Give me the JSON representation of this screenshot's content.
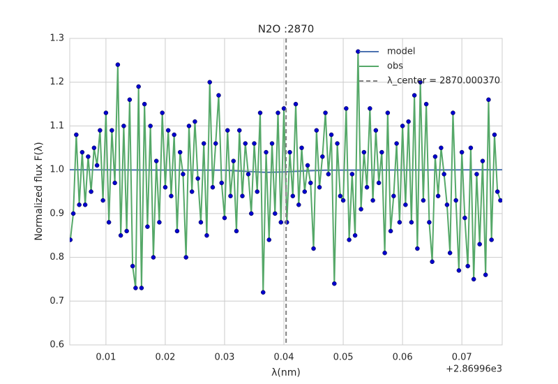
{
  "chart_data": {
    "type": "line",
    "title": "N2O :2870",
    "xlabel": "λ(nm)",
    "ylabel": "Normalized flux F(λ)",
    "x_offset_label": "+2.86996e3",
    "xlim": [
      0.0039,
      0.0768
    ],
    "ylim": [
      0.6,
      1.3
    ],
    "xticks": [
      0.01,
      0.02,
      0.03,
      0.04,
      0.05,
      0.06,
      0.07
    ],
    "yticks": [
      0.6,
      0.7,
      0.8,
      0.9,
      {
        "value": 1,
        "label": "1.0"
      },
      1.1,
      1.2,
      1.3
    ],
    "grid": true,
    "legend": "upper right",
    "series": [
      {
        "name": "model",
        "color": "#4c72b0",
        "x": [
          0.0039,
          0.03,
          0.034,
          0.037,
          0.04,
          0.043,
          0.047,
          0.0768
        ],
        "values": [
          1.0,
          0.999,
          0.996,
          0.994,
          0.995,
          0.997,
          0.999,
          1.0
        ]
      },
      {
        "name": "obs",
        "color": "#55a868",
        "marker_color": "#0000cc",
        "x": [
          0.004,
          0.0045,
          0.005,
          0.0055,
          0.006,
          0.0065,
          0.007,
          0.0075,
          0.008,
          0.0085,
          0.009,
          0.0095,
          0.01,
          0.0105,
          0.011,
          0.0115,
          0.012,
          0.0125,
          0.013,
          0.0135,
          0.014,
          0.0145,
          0.015,
          0.0155,
          0.016,
          0.0165,
          0.017,
          0.0175,
          0.018,
          0.0185,
          0.019,
          0.0195,
          0.02,
          0.0205,
          0.021,
          0.0215,
          0.022,
          0.0225,
          0.023,
          0.0235,
          0.024,
          0.0245,
          0.025,
          0.0255,
          0.026,
          0.0265,
          0.027,
          0.0275,
          0.028,
          0.0285,
          0.029,
          0.0295,
          0.03,
          0.0305,
          0.031,
          0.0315,
          0.032,
          0.0325,
          0.033,
          0.0335,
          0.034,
          0.0345,
          0.035,
          0.0355,
          0.036,
          0.0365,
          0.037,
          0.0375,
          0.038,
          0.0385,
          0.039,
          0.0395,
          0.04,
          0.0405,
          0.041,
          0.0415,
          0.042,
          0.0425,
          0.043,
          0.0435,
          0.044,
          0.0445,
          0.045,
          0.0455,
          0.046,
          0.0465,
          0.047,
          0.0475,
          0.048,
          0.0485,
          0.049,
          0.0495,
          0.05,
          0.0505,
          0.051,
          0.0515,
          0.052,
          0.0525,
          0.053,
          0.0535,
          0.054,
          0.0545,
          0.055,
          0.0555,
          0.056,
          0.0565,
          0.057,
          0.0575,
          0.058,
          0.0585,
          0.059,
          0.0595,
          0.06,
          0.0605,
          0.061,
          0.0615,
          0.062,
          0.0625,
          0.063,
          0.0635,
          0.064,
          0.0645,
          0.065,
          0.0655,
          0.066,
          0.0665,
          0.067,
          0.0675,
          0.068,
          0.0685,
          0.069,
          0.0695,
          0.07,
          0.0705,
          0.071,
          0.0715,
          0.072,
          0.0725,
          0.073,
          0.0735,
          0.074,
          0.0745,
          0.075,
          0.0755,
          0.076,
          0.0765
        ],
        "values": [
          0.84,
          0.9,
          1.08,
          0.92,
          1.04,
          0.92,
          1.03,
          0.95,
          1.05,
          1.01,
          1.09,
          0.93,
          1.13,
          0.88,
          1.09,
          0.97,
          1.24,
          0.85,
          1.1,
          0.86,
          1.16,
          0.78,
          0.73,
          1.19,
          0.73,
          1.15,
          0.87,
          1.1,
          0.8,
          1.02,
          0.88,
          1.13,
          0.96,
          1.09,
          0.94,
          1.08,
          0.86,
          1.04,
          0.99,
          0.8,
          1.1,
          0.95,
          1.11,
          0.98,
          0.88,
          1.06,
          0.85,
          1.2,
          0.96,
          1.06,
          1.17,
          0.97,
          0.89,
          1.09,
          0.94,
          1.02,
          0.86,
          1.09,
          0.94,
          1.06,
          0.99,
          0.9,
          1.06,
          0.95,
          1.13,
          0.72,
          1.04,
          0.84,
          1.06,
          0.9,
          1.13,
          0.88,
          1.14,
          0.88,
          1.04,
          0.94,
          1.15,
          0.92,
          1.05,
          0.95,
          1.01,
          0.97,
          0.82,
          1.09,
          0.96,
          1.03,
          1.13,
          0.99,
          1.08,
          0.74,
          1.06,
          0.94,
          0.93,
          1.14,
          0.84,
          0.99,
          0.85,
          1.27,
          0.91,
          1.04,
          0.96,
          1.14,
          0.93,
          1.09,
          0.97,
          1.04,
          0.81,
          1.13,
          0.86,
          0.94,
          1.06,
          0.88,
          1.1,
          0.92,
          1.11,
          0.88,
          1.17,
          0.82,
          1.2,
          0.93,
          1.15,
          0.88,
          0.79,
          1.03,
          0.94,
          1.05,
          0.99,
          0.92,
          0.81,
          1.13,
          0.93,
          0.77,
          1.04,
          0.89,
          0.78,
          1.05,
          0.75,
          0.99,
          0.83,
          1.02,
          0.76,
          1.16,
          0.84,
          1.08,
          0.95,
          0.93
        ]
      }
    ],
    "vline": {
      "x": 0.04037,
      "label": "λ_center = 2870.000370",
      "color": "#808080"
    }
  }
}
